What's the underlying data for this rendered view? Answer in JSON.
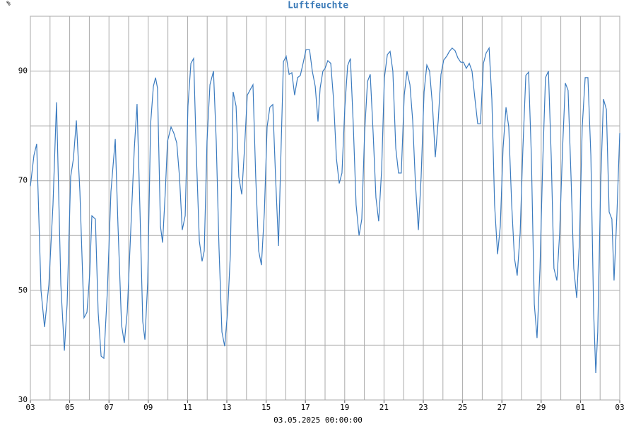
{
  "chart_data": {
    "type": "line",
    "title": "Luftfeuchte",
    "y_label": "%",
    "x_label": "03.05.2025 00:00:00",
    "color": "#3b7bbf",
    "grid": true,
    "xlim": [
      0,
      30
    ],
    "ylim": [
      30,
      100
    ],
    "xticks": [
      {
        "value": 0,
        "label": "03"
      },
      {
        "value": 2,
        "label": "05"
      },
      {
        "value": 4,
        "label": "07"
      },
      {
        "value": 6,
        "label": "09"
      },
      {
        "value": 8,
        "label": "11"
      },
      {
        "value": 10,
        "label": "13"
      },
      {
        "value": 12,
        "label": "15"
      },
      {
        "value": 14,
        "label": "17"
      },
      {
        "value": 16,
        "label": "19"
      },
      {
        "value": 18,
        "label": "21"
      },
      {
        "value": 20,
        "label": "23"
      },
      {
        "value": 22,
        "label": "25"
      },
      {
        "value": 24,
        "label": "27"
      },
      {
        "value": 26,
        "label": "29"
      },
      {
        "value": 28,
        "label": "01"
      },
      {
        "value": 30,
        "label": "03"
      }
    ],
    "x_minor_ticks": [
      1,
      3,
      5,
      7,
      9,
      11,
      13,
      15,
      17,
      19,
      21,
      23,
      25,
      27,
      29
    ],
    "yticks": [
      30,
      50,
      70,
      90
    ],
    "y_minor_ticks": [
      40,
      60,
      80,
      100
    ],
    "x": [
      0,
      0.18,
      0.32,
      0.54,
      0.72,
      0.94,
      1.15,
      1.33,
      1.55,
      1.73,
      1.87,
      2.05,
      2.19,
      2.34,
      2.52,
      2.73,
      2.88,
      3.02,
      3.13,
      3.31,
      3.45,
      3.6,
      3.74,
      3.92,
      4.1,
      4.32,
      4.46,
      4.64,
      4.78,
      4.93,
      5.11,
      5.29,
      5.43,
      5.58,
      5.72,
      5.83,
      5.97,
      6.12,
      6.26,
      6.37,
      6.47,
      6.62,
      6.73,
      6.87,
      6.98,
      7.16,
      7.3,
      7.45,
      7.59,
      7.73,
      7.88,
      8.02,
      8.17,
      8.31,
      8.45,
      8.6,
      8.74,
      8.85,
      8.99,
      9.14,
      9.32,
      9.46,
      9.6,
      9.75,
      9.89,
      10.04,
      10.18,
      10.32,
      10.47,
      10.61,
      10.76,
      10.9,
      11.04,
      11.19,
      11.33,
      11.47,
      11.62,
      11.76,
      11.91,
      12.05,
      12.19,
      12.34,
      12.48,
      12.63,
      12.77,
      12.88,
      13.02,
      13.17,
      13.31,
      13.45,
      13.6,
      13.74,
      13.88,
      14.03,
      14.21,
      14.35,
      14.5,
      14.64,
      14.75,
      14.89,
      15,
      15.14,
      15.29,
      15.43,
      15.58,
      15.72,
      15.86,
      16.01,
      16.15,
      16.29,
      16.44,
      16.58,
      16.73,
      16.87,
      17.01,
      17.16,
      17.3,
      17.45,
      17.59,
      17.73,
      17.88,
      18.02,
      18.17,
      18.31,
      18.45,
      18.6,
      18.74,
      18.88,
      19.03,
      19.17,
      19.32,
      19.46,
      19.6,
      19.75,
      19.89,
      20.04,
      20.18,
      20.32,
      20.47,
      20.61,
      20.76,
      20.9,
      21.04,
      21.19,
      21.33,
      21.47,
      21.62,
      21.76,
      21.91,
      22.05,
      22.19,
      22.34,
      22.48,
      22.63,
      22.77,
      22.91,
      23.06,
      23.2,
      23.35,
      23.49,
      23.63,
      23.78,
      23.92,
      24.06,
      24.21,
      24.35,
      24.5,
      24.64,
      24.78,
      24.93,
      25.07,
      25.22,
      25.36,
      25.5,
      25.65,
      25.79,
      25.94,
      26.08,
      26.22,
      26.37,
      26.51,
      26.65,
      26.8,
      26.94,
      27.09,
      27.23,
      27.37,
      27.52,
      27.66,
      27.81,
      27.95,
      28.09,
      28.24,
      28.38,
      28.53,
      28.67,
      28.78,
      28.88,
      29.03,
      29.17,
      29.32,
      29.46,
      29.6,
      29.71,
      29.86,
      30
    ],
    "values": [
      69,
      74.6,
      76.7,
      50,
      43.3,
      51,
      65.6,
      84.3,
      51,
      39,
      47.5,
      70.7,
      74,
      81,
      68,
      45,
      46,
      53,
      63.6,
      63,
      46,
      38,
      37.6,
      50,
      68,
      77.6,
      61.7,
      43.7,
      40.4,
      46,
      61,
      75.9,
      84,
      64.3,
      44.3,
      41,
      51.4,
      80.4,
      87.2,
      88.8,
      86.9,
      61.7,
      58.7,
      68.2,
      77.2,
      79.8,
      78.7,
      76.9,
      70.7,
      61,
      63.6,
      83.6,
      91.4,
      92.3,
      74.6,
      59,
      55.3,
      57.2,
      77.2,
      87.5,
      90,
      77.2,
      57.9,
      42.4,
      39.8,
      46.2,
      56.6,
      86.2,
      83.6,
      70.7,
      67.5,
      75.9,
      85.6,
      86.6,
      87.5,
      70.7,
      57.2,
      54.6,
      64.3,
      79.8,
      83.4,
      83.9,
      70.7,
      58.1,
      77.2,
      91.7,
      92.7,
      89.4,
      89.7,
      85.6,
      88.8,
      89.2,
      91.4,
      93.9,
      93.9,
      90,
      87.2,
      80.8,
      86.9,
      90,
      90.5,
      91.9,
      91.4,
      84.9,
      74,
      69.5,
      71.4,
      83.6,
      91,
      92.3,
      79.8,
      65.6,
      60,
      63,
      78.5,
      88.1,
      89.4,
      78.5,
      66.9,
      62.6,
      72,
      88.8,
      93,
      93.6,
      90,
      75.9,
      71.4,
      71.4,
      85.6,
      90,
      87.5,
      81,
      69.5,
      61,
      70.7,
      86.2,
      91.1,
      90,
      83.6,
      74.3,
      81,
      89.4,
      92,
      92.7,
      93.6,
      94.2,
      93.7,
      92.4,
      91.6,
      91.6,
      90.5,
      91.4,
      90,
      84.9,
      80.4,
      80.4,
      91.4,
      93.3,
      94.2,
      84.9,
      65.6,
      56.6,
      61.7,
      75.9,
      83.4,
      79.8,
      65.6,
      55.9,
      52.7,
      60.4,
      75.9,
      89.2,
      89.8,
      74.6,
      47.5,
      41.3,
      54,
      73.3,
      88.8,
      90,
      74.6,
      54,
      51.8,
      60.4,
      75.9,
      87.8,
      86.5,
      70.7,
      54,
      48.6,
      59,
      79.8,
      88.8,
      88.8,
      74.6,
      46.2,
      34.9,
      42.4,
      69.5,
      84.9,
      83,
      64.3,
      63,
      51.8,
      64.3,
      78.7
    ]
  }
}
